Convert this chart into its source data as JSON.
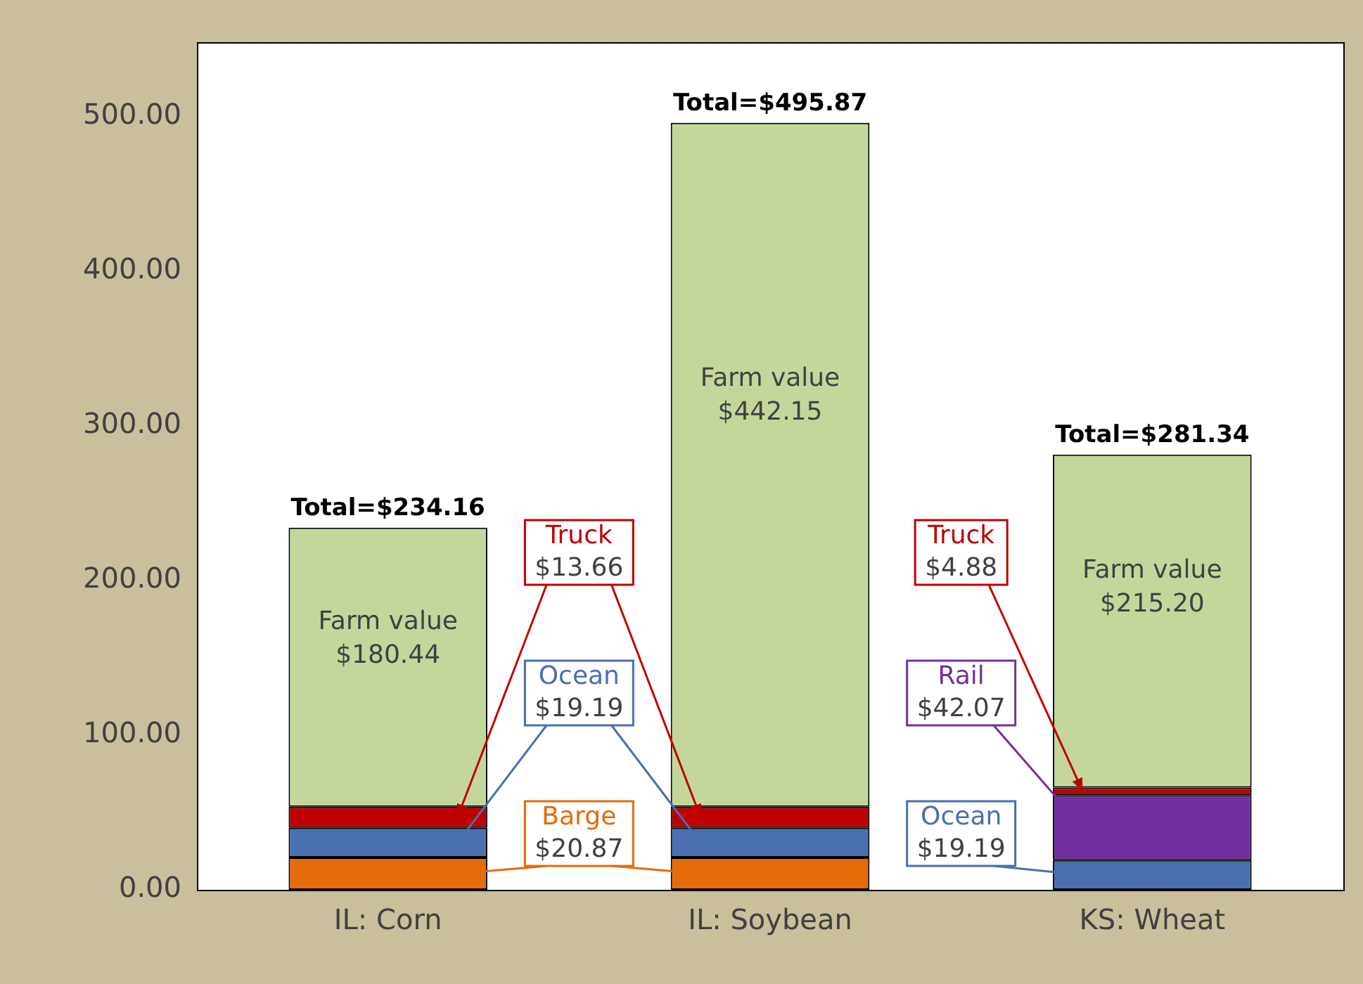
{
  "chart_data": {
    "type": "bar",
    "stacked": true,
    "categories": [
      "IL: Corn",
      "IL: Soybean",
      "KS: Wheat"
    ],
    "series": [
      {
        "name": "Barge",
        "color": "#e46c0a",
        "values": [
          20.87,
          20.87,
          null
        ],
        "value_labels": [
          "$20.87",
          null,
          null
        ]
      },
      {
        "name": "Ocean",
        "color": "#4a6fb0",
        "values": [
          19.19,
          19.19,
          19.19
        ],
        "value_labels": [
          "$19.19",
          null,
          "$19.19"
        ]
      },
      {
        "name": "Rail",
        "color": "#7030a0",
        "values": [
          null,
          null,
          42.07
        ],
        "value_labels": [
          null,
          null,
          "$42.07"
        ]
      },
      {
        "name": "Truck",
        "color": "#c00000",
        "values": [
          13.66,
          13.66,
          4.88
        ],
        "value_labels": [
          "$13.66",
          null,
          "$4.88"
        ]
      },
      {
        "name": "Farm value",
        "color": "#c4d79b",
        "values": [
          180.44,
          442.15,
          215.2
        ],
        "value_labels": [
          "$180.44",
          "$442.15",
          "$215.20"
        ]
      }
    ],
    "totals": [
      "Total=$234.16",
      "Total=$495.87",
      "Total=$281.34"
    ],
    "ylim": [
      0,
      548
    ],
    "yticks": [
      {
        "value": 0,
        "label": "0.00"
      },
      {
        "value": 100,
        "label": "100.00"
      },
      {
        "value": 200,
        "label": "200.00"
      },
      {
        "value": 300,
        "label": "300.00"
      },
      {
        "value": 400,
        "label": "400.00"
      },
      {
        "value": 500,
        "label": "500.00"
      }
    ],
    "grid": false,
    "legend": false
  }
}
